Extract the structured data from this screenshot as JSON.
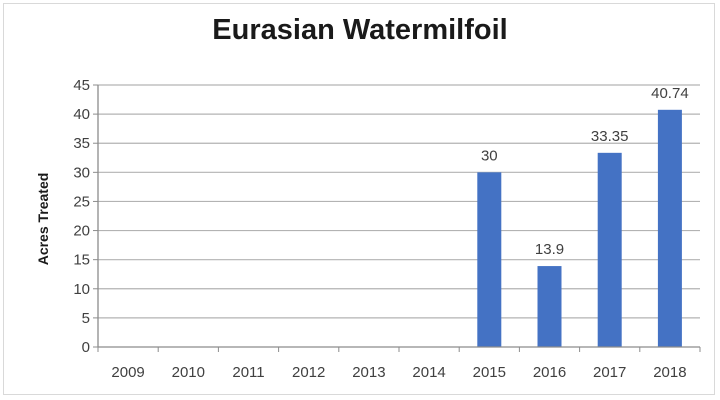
{
  "chart_data": {
    "type": "bar",
    "title": "Eurasian Watermilfoil",
    "xlabel": "",
    "ylabel": "Acres Treated",
    "categories": [
      "2009",
      "2010",
      "2011",
      "2012",
      "2013",
      "2014",
      "2015",
      "2016",
      "2017",
      "2018"
    ],
    "values": [
      null,
      null,
      null,
      null,
      null,
      null,
      30,
      13.9,
      33.35,
      40.74
    ],
    "data_labels": [
      "",
      "",
      "",
      "",
      "",
      "",
      "30",
      "13.9",
      "33.35",
      "40.74"
    ],
    "ylim": [
      0,
      45
    ],
    "yticks": [
      0,
      5,
      10,
      15,
      20,
      25,
      30,
      35,
      40,
      45
    ],
    "grid": true,
    "legend": "none",
    "colors": {
      "bar": "#4472c4",
      "grid": "#b3b3b3",
      "axis": "#8c8c8c"
    }
  }
}
